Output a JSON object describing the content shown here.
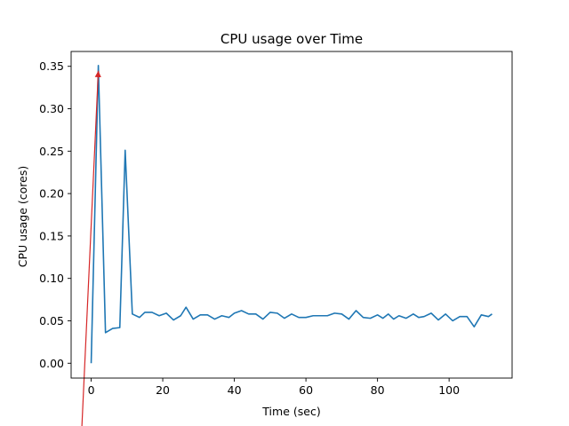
{
  "chart_data": {
    "type": "line",
    "title": "CPU usage over Time",
    "xlabel": "Time (sec)",
    "ylabel": "CPU usage (cores)",
    "xlim": [
      -5.6,
      117.6
    ],
    "ylim": [
      -0.0175,
      0.3675
    ],
    "xticks": [
      0,
      20,
      40,
      60,
      80,
      100
    ],
    "yticks": [
      0.0,
      0.05,
      0.1,
      0.15,
      0.2,
      0.25,
      0.3,
      0.35
    ],
    "ytick_labels": [
      "0.00",
      "0.05",
      "0.10",
      "0.15",
      "0.20",
      "0.25",
      "0.30",
      "0.35"
    ],
    "grid": false,
    "series": [
      {
        "color": "#1f77b4",
        "x": [
          0,
          2,
          4,
          6,
          8,
          9.5,
          11.5,
          13.5,
          15,
          17,
          19,
          21,
          23,
          25,
          26.5,
          28.5,
          30.5,
          32.5,
          34.5,
          36.5,
          38.5,
          40,
          42,
          44,
          46,
          48,
          50,
          52,
          54,
          56,
          58,
          60,
          62,
          64,
          66,
          68,
          70,
          72,
          74,
          76,
          78,
          80,
          81.5,
          83,
          84.5,
          86,
          88,
          90,
          91.5,
          93,
          95,
          97,
          99,
          101,
          103,
          105,
          107,
          109,
          111,
          112
        ],
        "y": [
          0.0,
          0.351,
          0.036,
          0.041,
          0.042,
          0.251,
          0.058,
          0.054,
          0.06,
          0.06,
          0.056,
          0.059,
          0.051,
          0.056,
          0.066,
          0.052,
          0.057,
          0.057,
          0.052,
          0.056,
          0.054,
          0.059,
          0.062,
          0.058,
          0.058,
          0.052,
          0.06,
          0.059,
          0.053,
          0.058,
          0.054,
          0.054,
          0.056,
          0.056,
          0.056,
          0.059,
          0.058,
          0.052,
          0.062,
          0.054,
          0.053,
          0.057,
          0.053,
          0.058,
          0.052,
          0.056,
          0.053,
          0.058,
          0.054,
          0.055,
          0.059,
          0.051,
          0.058,
          0.05,
          0.055,
          0.055,
          0.043,
          0.057,
          0.055,
          0.058
        ]
      }
    ],
    "annotation": {
      "type": "arrow",
      "color": "#d62728",
      "from": [
        -2.6,
        -0.075
      ],
      "to": [
        2,
        0.351
      ]
    }
  }
}
